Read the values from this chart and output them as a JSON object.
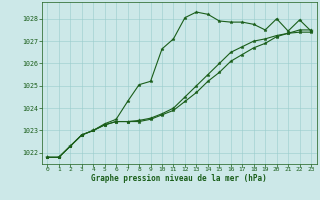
{
  "bg_color": "#cce8e8",
  "grid_color": "#99cccc",
  "line_color": "#1a5e1a",
  "text_color": "#1a5e1a",
  "xlabel": "Graphe pression niveau de la mer (hPa)",
  "ylim": [
    1021.5,
    1028.75
  ],
  "xlim": [
    -0.5,
    23.5
  ],
  "yticks": [
    1022,
    1023,
    1024,
    1025,
    1026,
    1027,
    1028
  ],
  "xticks": [
    0,
    1,
    2,
    3,
    4,
    5,
    6,
    7,
    8,
    9,
    10,
    11,
    12,
    13,
    14,
    15,
    16,
    17,
    18,
    19,
    20,
    21,
    22,
    23
  ],
  "s1": [
    1021.8,
    1021.8,
    1022.3,
    1022.8,
    1023.0,
    1023.3,
    1023.5,
    1024.3,
    1025.05,
    1025.2,
    1026.65,
    1027.1,
    1028.05,
    1028.3,
    1028.2,
    1027.9,
    1027.85,
    1027.85,
    1027.75,
    1027.5,
    1028.0,
    1027.45,
    1027.95,
    1027.45
  ],
  "s2": [
    1021.8,
    1021.8,
    1022.3,
    1022.8,
    1023.0,
    1023.25,
    1023.4,
    1023.4,
    1023.4,
    1023.5,
    1023.7,
    1023.9,
    1024.3,
    1024.7,
    1025.2,
    1025.6,
    1026.1,
    1026.4,
    1026.7,
    1026.9,
    1027.2,
    1027.35,
    1027.4,
    1027.4
  ],
  "s3": [
    1021.8,
    1021.8,
    1022.3,
    1022.8,
    1023.0,
    1023.25,
    1023.4,
    1023.4,
    1023.45,
    1023.55,
    1023.75,
    1024.0,
    1024.5,
    1025.0,
    1025.5,
    1026.0,
    1026.5,
    1026.75,
    1027.0,
    1027.1,
    1027.25,
    1027.35,
    1027.5,
    1027.5
  ],
  "marker_size": 2.5,
  "linewidth": 0.8
}
